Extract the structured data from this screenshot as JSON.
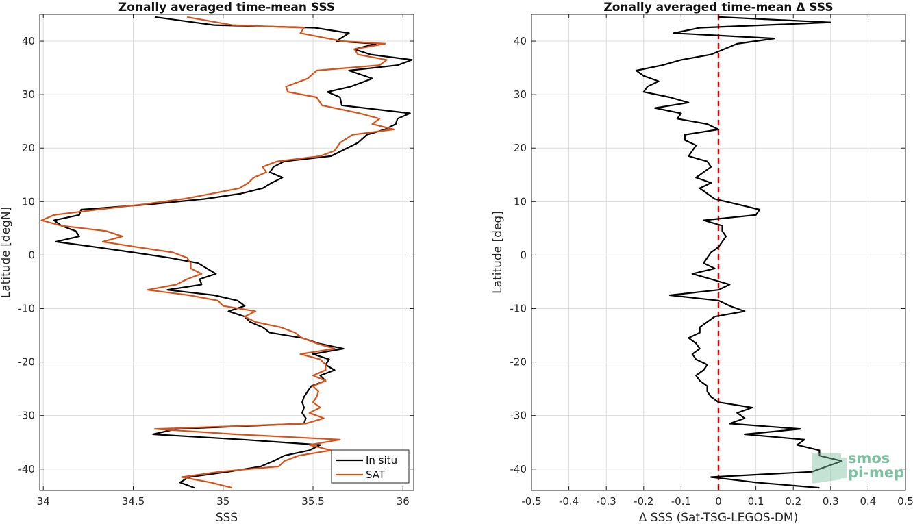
{
  "chart_data": [
    {
      "type": "line",
      "title": "Zonally averaged time-mean SSS",
      "xlabel": "SSS",
      "ylabel": "Latitude [degN]",
      "xlim": [
        33.98,
        36.06
      ],
      "ylim": [
        -44,
        45
      ],
      "xticks": [
        34,
        34.5,
        35,
        35.5,
        36
      ],
      "xtick_labels": [
        "34",
        "34.5",
        "35",
        "35.5",
        "36"
      ],
      "yticks": [
        -40,
        -30,
        -20,
        -10,
        0,
        10,
        20,
        30,
        40
      ],
      "ytick_labels": [
        "-40",
        "-30",
        "-20",
        "-10",
        "0",
        "10",
        "20",
        "30",
        "40"
      ],
      "grid": true,
      "legend": {
        "location": "bottom-right",
        "entries": [
          "In situ",
          "SAT"
        ]
      },
      "series": [
        {
          "name": "In situ",
          "color": "#000000",
          "lat": [
            44.5,
            43.0,
            42.5,
            41.5,
            40.0,
            39.5,
            38.5,
            37.5,
            36.5,
            35.5,
            34.5,
            33.0,
            31.5,
            30.5,
            29.5,
            28.0,
            26.5,
            25.5,
            24.5,
            23.5,
            22.5,
            21.0,
            19.5,
            18.5,
            17.5,
            16.5,
            15.5,
            14.5,
            13.5,
            12.5,
            11.5,
            10.5,
            9.5,
            8.5,
            7.5,
            6.5,
            5.5,
            4.5,
            3.5,
            2.5,
            1.5,
            0.5,
            -0.5,
            -1.5,
            -2.5,
            -3.5,
            -4.5,
            -5.5,
            -6.5,
            -7.5,
            -8.5,
            -9.5,
            -10.5,
            -11.5,
            -12.5,
            -13.5,
            -14.5,
            -15.5,
            -16.5,
            -17.5,
            -18.5,
            -19.5,
            -20.5,
            -21.5,
            -22.5,
            -23.5,
            -24.5,
            -25.5,
            -26.5,
            -27.5,
            -28.5,
            -29.5,
            -30.5,
            -31.5,
            -32.5,
            -33.5,
            -34.5,
            -35.5,
            -36.5,
            -37.5,
            -38.5,
            -39.5,
            -40.5,
            -41.5,
            -42.5,
            -43.5
          ],
          "values": [
            34.62,
            34.95,
            35.51,
            35.7,
            35.63,
            35.85,
            35.73,
            35.82,
            36.05,
            35.97,
            35.7,
            35.83,
            35.71,
            35.58,
            35.65,
            35.66,
            36.04,
            35.97,
            35.96,
            35.9,
            35.8,
            35.75,
            35.66,
            35.6,
            35.34,
            35.28,
            35.26,
            35.33,
            35.27,
            35.22,
            35.1,
            34.9,
            34.6,
            34.21,
            34.2,
            34.06,
            34.1,
            34.18,
            34.2,
            34.07,
            34.29,
            34.5,
            34.7,
            34.86,
            34.91,
            34.96,
            34.87,
            34.88,
            34.69,
            34.95,
            35.08,
            35.12,
            35.03,
            35.12,
            35.15,
            35.22,
            35.26,
            35.44,
            35.53,
            35.67,
            35.5,
            35.59,
            35.57,
            35.62,
            35.54,
            35.57,
            35.49,
            35.47,
            35.45,
            35.44,
            35.45,
            35.44,
            35.46,
            35.45,
            34.74,
            34.61,
            35.11,
            35.54,
            35.48,
            35.34,
            35.28,
            35.21,
            35.03,
            34.81,
            34.76,
            34.84
          ]
        },
        {
          "name": "SAT",
          "color": "#d95319",
          "lat": [
            44.5,
            43.0,
            42.5,
            41.5,
            40.0,
            39.5,
            38.5,
            37.5,
            36.5,
            35.5,
            34.5,
            33.0,
            31.5,
            30.5,
            29.5,
            28.0,
            26.5,
            25.5,
            24.5,
            23.5,
            22.5,
            21.0,
            19.5,
            18.5,
            17.5,
            16.5,
            15.5,
            14.5,
            13.5,
            12.5,
            11.5,
            10.5,
            9.5,
            8.5,
            7.5,
            6.5,
            5.5,
            4.5,
            3.5,
            2.5,
            1.5,
            0.5,
            -0.5,
            -1.5,
            -2.5,
            -3.5,
            -4.5,
            -5.5,
            -6.5,
            -7.5,
            -8.5,
            -9.5,
            -10.5,
            -11.5,
            -12.5,
            -13.5,
            -14.5,
            -15.5,
            -16.5,
            -17.5,
            -18.5,
            -19.5,
            -20.5,
            -21.5,
            -22.5,
            -23.5,
            -24.5,
            -25.5,
            -26.5,
            -27.5,
            -28.5,
            -29.5,
            -30.5,
            -31.5,
            -32.5,
            -33.5,
            -34.5,
            -35.5,
            -36.5,
            -37.5,
            -38.5,
            -39.5,
            -40.5,
            -41.5,
            -42.5,
            -43.5
          ],
          "values": [
            34.8,
            35.05,
            35.45,
            35.43,
            35.66,
            35.9,
            35.73,
            35.75,
            35.91,
            35.87,
            35.52,
            35.47,
            35.35,
            35.36,
            35.52,
            35.55,
            35.76,
            35.87,
            35.83,
            35.95,
            35.72,
            35.65,
            35.62,
            35.54,
            35.3,
            35.22,
            35.24,
            35.17,
            35.14,
            35.09,
            34.94,
            34.78,
            34.56,
            34.3,
            34.06,
            33.99,
            34.1,
            34.35,
            34.44,
            34.33,
            34.52,
            34.72,
            34.8,
            34.82,
            34.82,
            34.88,
            34.8,
            34.74,
            34.58,
            34.81,
            34.97,
            35.0,
            35.18,
            35.12,
            35.18,
            35.32,
            35.4,
            35.44,
            35.52,
            35.62,
            35.43,
            35.54,
            35.57,
            35.57,
            35.5,
            35.57,
            35.5,
            35.53,
            35.52,
            35.5,
            35.54,
            35.48,
            35.56,
            35.46,
            34.62,
            35.07,
            35.65,
            35.48,
            35.6,
            35.42,
            35.34,
            35.31,
            34.98,
            34.77,
            34.93,
            35.05
          ]
        }
      ]
    },
    {
      "type": "line",
      "title": "Zonally averaged time-mean Δ SSS",
      "xlabel": "Δ SSS (Sat-TSG-LEGOS-DM)",
      "ylabel": "Latitude [deg]",
      "xlim": [
        -0.5,
        0.5
      ],
      "ylim": [
        -44,
        45
      ],
      "xticks": [
        -0.5,
        -0.4,
        -0.3,
        -0.2,
        -0.1,
        0,
        0.1,
        0.2,
        0.3,
        0.4,
        0.5
      ],
      "xtick_labels": [
        "-0.5",
        "-0.4",
        "-0.3",
        "-0.2",
        "-0.1",
        "0",
        "0.1",
        "0.2",
        "0.3",
        "0.4",
        "0.5"
      ],
      "yticks": [
        -40,
        -30,
        -20,
        -10,
        0,
        10,
        20,
        30,
        40
      ],
      "ytick_labels": [
        "-40",
        "-30",
        "-20",
        "-10",
        "0",
        "10",
        "20",
        "30",
        "40"
      ],
      "grid": true,
      "reference_line": {
        "x": 0,
        "color": "#e00000",
        "style": "dashed"
      },
      "series": [
        {
          "name": "",
          "color": "#000000",
          "lat": [
            44.5,
            43.5,
            42.5,
            41.5,
            40.5,
            39.5,
            37.5,
            36.5,
            35.5,
            34.5,
            33.5,
            32.5,
            31.5,
            30.5,
            29.5,
            28.5,
            27.5,
            26.5,
            25.5,
            24.5,
            23.5,
            22.5,
            21.5,
            20.5,
            19.5,
            18.5,
            17.5,
            16.5,
            15.5,
            14.5,
            13.5,
            12.5,
            11.5,
            10.5,
            9.5,
            8.5,
            7.5,
            6.5,
            5.5,
            4.5,
            3.5,
            2.5,
            1.5,
            0.5,
            -0.5,
            -1.5,
            -2.5,
            -3.5,
            -4.5,
            -5.5,
            -6.5,
            -7.5,
            -8.5,
            -9.5,
            -10.5,
            -11.5,
            -12.5,
            -13.5,
            -14.5,
            -15.5,
            -16.5,
            -17.5,
            -18.5,
            -19.5,
            -20.5,
            -21.5,
            -22.5,
            -23.5,
            -24.5,
            -25.5,
            -26.5,
            -27.5,
            -28.5,
            -29.5,
            -30.5,
            -31.5,
            -32.5,
            -33.5,
            -34.5,
            -35.5,
            -36.5,
            -37.5,
            -38.5,
            -39.5,
            -40.5,
            -41.5,
            -42.5,
            -43.5
          ],
          "values": [
            0.0,
            0.3,
            -0.05,
            -0.12,
            0.15,
            0.05,
            -0.02,
            -0.1,
            -0.15,
            -0.22,
            -0.2,
            -0.16,
            -0.19,
            -0.2,
            -0.13,
            -0.08,
            -0.17,
            -0.1,
            -0.11,
            -0.03,
            0.0,
            -0.09,
            -0.09,
            -0.06,
            -0.07,
            -0.08,
            -0.03,
            -0.02,
            -0.04,
            -0.06,
            -0.02,
            -0.05,
            -0.03,
            -0.01,
            0.05,
            0.11,
            0.1,
            -0.04,
            0.01,
            0.01,
            0.02,
            0.01,
            0.0,
            -0.02,
            -0.03,
            -0.04,
            -0.01,
            -0.07,
            -0.02,
            0.03,
            0.0,
            -0.13,
            0.0,
            0.03,
            0.07,
            -0.01,
            -0.03,
            -0.05,
            -0.05,
            -0.08,
            -0.06,
            -0.05,
            -0.07,
            -0.06,
            -0.03,
            -0.04,
            -0.06,
            -0.05,
            -0.03,
            -0.03,
            -0.02,
            0.0,
            0.09,
            0.05,
            0.07,
            0.03,
            0.22,
            0.07,
            0.23,
            0.21,
            0.27,
            0.27,
            0.33,
            0.29,
            0.25,
            -0.02,
            0.1,
            0.27
          ]
        }
      ]
    }
  ],
  "watermark": {
    "line1": "smos",
    "line2": "pi-mep",
    "color": "#7cc2a1"
  }
}
